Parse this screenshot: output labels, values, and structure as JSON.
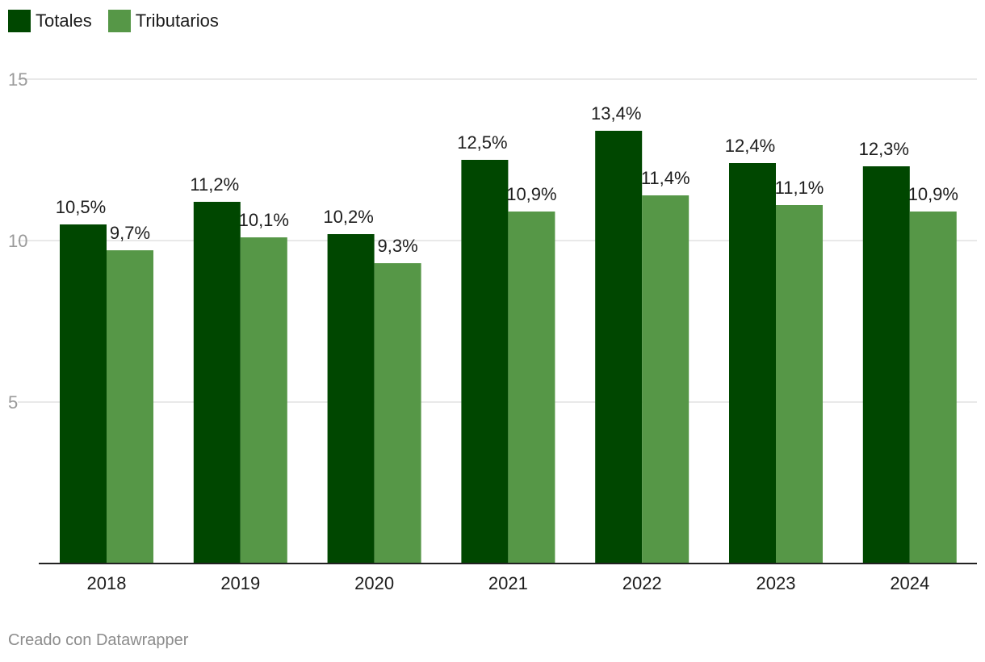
{
  "legend": [
    {
      "label": "Totales",
      "color": "#004700"
    },
    {
      "label": "Tributarios",
      "color": "#569747"
    }
  ],
  "chart_data": {
    "type": "bar",
    "title": "",
    "xlabel": "",
    "ylabel": "",
    "categories": [
      "2018",
      "2019",
      "2020",
      "2021",
      "2022",
      "2023",
      "2024"
    ],
    "series": [
      {
        "name": "Totales",
        "color": "#004700",
        "values": [
          10.5,
          11.2,
          10.2,
          12.5,
          13.4,
          12.4,
          12.3
        ],
        "labels": [
          "10,5%",
          "11,2%",
          "10,2%",
          "12,5%",
          "13,4%",
          "12,4%",
          "12,3%"
        ]
      },
      {
        "name": "Tributarios",
        "color": "#569747",
        "values": [
          9.7,
          10.1,
          9.3,
          10.9,
          11.4,
          11.1,
          10.9
        ],
        "labels": [
          "9,7%",
          "10,1%",
          "9,3%",
          "10,9%",
          "11,4%",
          "11,1%",
          "10,9%"
        ]
      }
    ],
    "ylim": [
      0,
      15
    ],
    "yticks": [
      5,
      10,
      15
    ],
    "grid": true,
    "legend_position": "top-left"
  },
  "footer": {
    "credit": "Creado con Datawrapper"
  }
}
